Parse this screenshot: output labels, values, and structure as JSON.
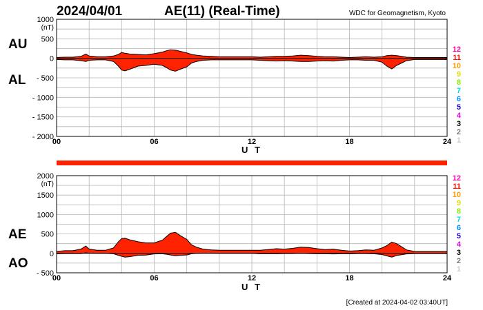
{
  "header": {
    "date": "2024/04/01",
    "title": "AE(11) (Real-Time)",
    "source": "WDC for Geomagnetism, Kyoto"
  },
  "footer": {
    "created": "[Created at 2024-04-02 03:40UT]"
  },
  "colors": {
    "fill": "#ff2200",
    "line": "#000000",
    "grid": "#b4b4b4",
    "station_bar": "#ff2200"
  },
  "station_legend": [
    {
      "label": "12",
      "color": "#ff00aa"
    },
    {
      "label": "11",
      "color": "#ff1100"
    },
    {
      "label": "10",
      "color": "#ff9900"
    },
    {
      "label": "9",
      "color": "#dddd00"
    },
    {
      "label": "8",
      "color": "#88ee00"
    },
    {
      "label": "7",
      "color": "#00dddd"
    },
    {
      "label": "6",
      "color": "#0088ff"
    },
    {
      "label": "5",
      "color": "#2200cc"
    },
    {
      "label": "4",
      "color": "#dd00dd"
    },
    {
      "label": "3",
      "color": "#000000"
    },
    {
      "label": "2",
      "color": "#777777"
    },
    {
      "label": "1",
      "color": "#cccccc"
    }
  ],
  "chart_data": [
    {
      "type": "area",
      "panel": "top",
      "label_upper": "AU",
      "label_lower": "AL",
      "unit": "(nT)",
      "xlabel": "U T",
      "xlim": [
        0,
        24
      ],
      "ylim": [
        -2000,
        1000
      ],
      "xticks": [
        "00",
        "06",
        "12",
        "18",
        "24"
      ],
      "yticks": [
        "1000",
        "500",
        "0",
        "- 500",
        "- 1000",
        "- 1500",
        "- 2000"
      ],
      "grid": true,
      "x": [
        0,
        0.5,
        1,
        1.5,
        1.8,
        2,
        2.5,
        3,
        3.5,
        3.8,
        4,
        4.2,
        4.5,
        5,
        5.5,
        6,
        6.5,
        6.8,
        7,
        7.3,
        7.6,
        8,
        8.3,
        8.6,
        9,
        9.5,
        10,
        10.5,
        11,
        11.5,
        12,
        12.5,
        13,
        13.5,
        14,
        14.5,
        15,
        15.5,
        16,
        16.5,
        17,
        17.5,
        18,
        18.5,
        19,
        19.5,
        20,
        20.3,
        20.6,
        20.9,
        21.2,
        21.5,
        22,
        22.5,
        23,
        23.5,
        24
      ],
      "series": [
        {
          "name": "AU",
          "values": [
            20,
            30,
            30,
            50,
            110,
            60,
            40,
            40,
            60,
            100,
            150,
            130,
            110,
            100,
            90,
            120,
            160,
            200,
            220,
            210,
            180,
            140,
            100,
            80,
            60,
            50,
            40,
            40,
            40,
            40,
            40,
            30,
            40,
            50,
            50,
            60,
            80,
            70,
            50,
            40,
            40,
            30,
            20,
            30,
            40,
            30,
            40,
            70,
            80,
            70,
            50,
            30,
            20,
            20,
            20,
            20,
            20
          ]
        },
        {
          "name": "AL",
          "values": [
            -30,
            -40,
            -40,
            -60,
            -80,
            -50,
            -40,
            -40,
            -80,
            -200,
            -300,
            -320,
            -280,
            -200,
            -180,
            -150,
            -180,
            -250,
            -300,
            -330,
            -280,
            -220,
            -120,
            -80,
            -50,
            -40,
            -40,
            -40,
            -40,
            -40,
            -40,
            -50,
            -60,
            -70,
            -60,
            -70,
            -80,
            -80,
            -70,
            -60,
            -70,
            -50,
            -40,
            -40,
            -50,
            -50,
            -100,
            -200,
            -270,
            -180,
            -120,
            -60,
            -30,
            -30,
            -30,
            -30,
            -30
          ]
        }
      ]
    },
    {
      "type": "area",
      "panel": "bottom",
      "label_upper": "AE",
      "label_lower": "AO",
      "unit": "(nT)",
      "xlabel": "U T",
      "xlim": [
        0,
        24
      ],
      "ylim": [
        -500,
        2000
      ],
      "xticks": [
        "00",
        "06",
        "12",
        "18",
        "24"
      ],
      "yticks": [
        "2000",
        "1500",
        "1000",
        "500",
        "0",
        "- 500"
      ],
      "grid": true,
      "x": [
        0,
        0.5,
        1,
        1.5,
        1.8,
        2,
        2.5,
        3,
        3.5,
        3.8,
        4,
        4.2,
        4.5,
        5,
        5.5,
        6,
        6.5,
        6.8,
        7,
        7.3,
        7.6,
        8,
        8.3,
        8.6,
        9,
        9.5,
        10,
        10.5,
        11,
        11.5,
        12,
        12.5,
        13,
        13.5,
        14,
        14.5,
        15,
        15.5,
        16,
        16.5,
        17,
        17.5,
        18,
        18.5,
        19,
        19.5,
        20,
        20.3,
        20.6,
        20.9,
        21.2,
        21.5,
        22,
        22.5,
        23,
        23.5,
        24
      ],
      "series": [
        {
          "name": "AE",
          "values": [
            50,
            70,
            70,
            110,
            190,
            110,
            80,
            80,
            140,
            300,
            380,
            390,
            350,
            300,
            270,
            270,
            340,
            450,
            520,
            540,
            460,
            360,
            220,
            160,
            110,
            90,
            80,
            80,
            80,
            80,
            80,
            80,
            100,
            120,
            110,
            130,
            160,
            150,
            120,
            100,
            110,
            80,
            60,
            70,
            90,
            80,
            140,
            200,
            290,
            250,
            170,
            90,
            50,
            50,
            50,
            50,
            50
          ]
        },
        {
          "name": "AO",
          "values": [
            -10,
            -5,
            -5,
            -5,
            15,
            5,
            0,
            0,
            -10,
            -50,
            -75,
            -95,
            -85,
            -50,
            -45,
            -15,
            -10,
            -25,
            -40,
            -60,
            -50,
            -40,
            -10,
            0,
            5,
            5,
            0,
            0,
            0,
            0,
            0,
            -10,
            -10,
            -10,
            -5,
            -5,
            0,
            -5,
            -10,
            -10,
            -15,
            -10,
            -10,
            -5,
            -5,
            -10,
            -30,
            -65,
            -95,
            -55,
            -35,
            -15,
            -5,
            -5,
            -5,
            -5,
            -5
          ]
        }
      ]
    }
  ]
}
